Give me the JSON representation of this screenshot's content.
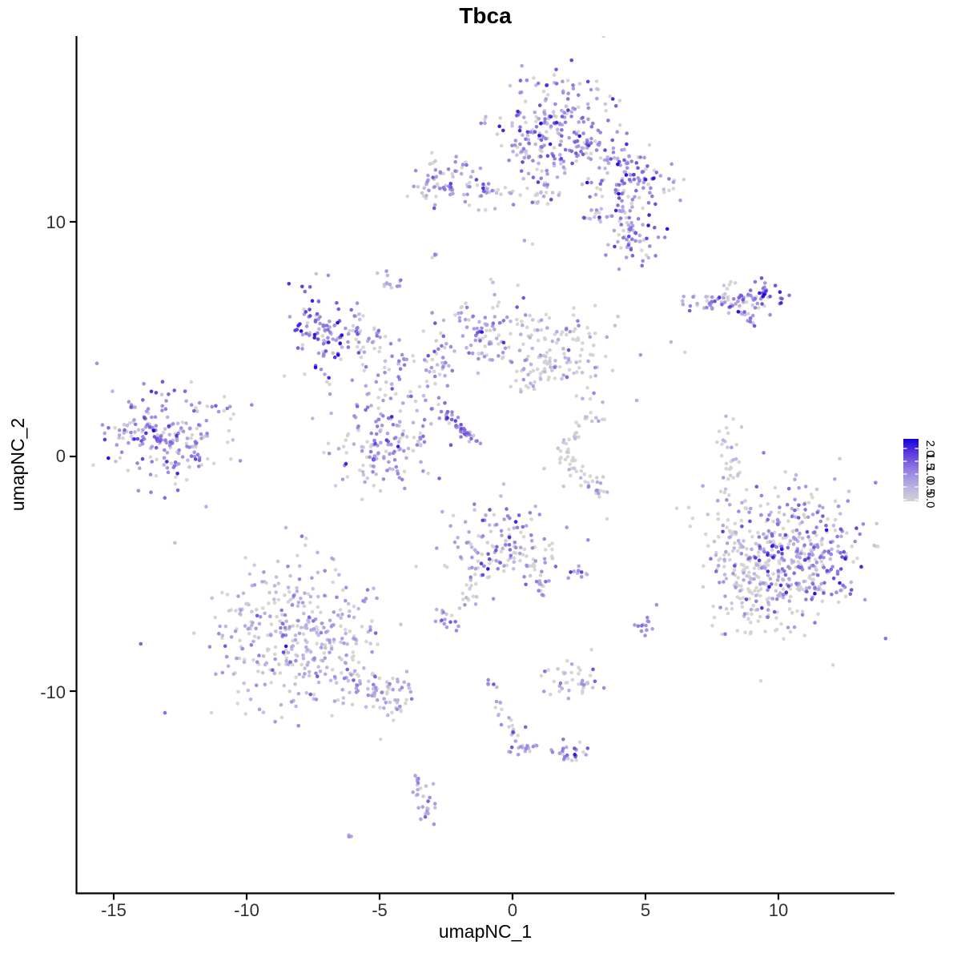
{
  "chart_data": {
    "type": "scatter",
    "title": "Tbca",
    "xlabel": "umapNC_1",
    "ylabel": "umapNC_2",
    "x_tick_labels": [
      "-15",
      "-10",
      "-5",
      "0",
      "5",
      "10"
    ],
    "x_tick_values": [
      -15,
      -10,
      -5,
      0,
      5,
      10
    ],
    "y_tick_labels": [
      "10",
      "0",
      "-10"
    ],
    "y_tick_values": [
      10,
      0,
      -10
    ],
    "xlim": [
      -16.4,
      14.4
    ],
    "ylim": [
      -18.6,
      17.9
    ],
    "grid": false,
    "legend": {
      "position": "right",
      "tick_labels": [
        "2.0",
        "1.5",
        "1.0",
        "0.5",
        "0.0"
      ],
      "tick_values": [
        2.0,
        1.5,
        1.0,
        0.5,
        0.0
      ],
      "min": 0.0,
      "max": 2.0
    },
    "colors": {
      "background": "#FFFFFF",
      "axis": "#000000",
      "title_text": "#000000",
      "tick_text": "#303030",
      "color_low": "#D3D3D3",
      "color_high": "#1500E1"
    },
    "color_stops": [
      [
        0.0,
        "#D3D3D3"
      ],
      [
        0.25,
        "#B7AEE4"
      ],
      [
        0.5,
        "#9480E2"
      ],
      [
        0.75,
        "#6240DB"
      ],
      [
        1.0,
        "#1500E1"
      ]
    ],
    "point_radius": 2.3,
    "point_opacity": 0.92,
    "seed": 42,
    "clusters": [
      {
        "name": "top-main",
        "shape": "blob",
        "cx": 1.81,
        "cy": 13.72,
        "sx": 1.27,
        "sy": 1.15,
        "rot": -20,
        "n": 270,
        "p0": 0.18,
        "emean": 0.85,
        "esd": 0.45
      },
      {
        "name": "top-right-arm",
        "shape": "blob",
        "cx": 4.61,
        "cy": 11.88,
        "sx": 0.84,
        "sy": 0.55,
        "rot": -25,
        "n": 90,
        "p0": 0.15,
        "emean": 1.0,
        "esd": 0.5
      },
      {
        "name": "top-lower-blob",
        "shape": "blob",
        "cx": 4.52,
        "cy": 9.22,
        "sx": 0.6,
        "sy": 0.61,
        "rot": 0,
        "n": 55,
        "p0": 0.12,
        "emean": 1.0,
        "esd": 0.5
      },
      {
        "name": "top-neck",
        "shape": "line",
        "x1": 4.22,
        "y1": 11.26,
        "x2": 4.52,
        "y2": 9.73,
        "jitter": 0.25,
        "n": 25,
        "p0": 0.2,
        "emean": 0.9,
        "esd": 0.4
      },
      {
        "name": "top-small-ledge",
        "shape": "blob",
        "cx": 3.16,
        "cy": 10.2,
        "sx": 0.35,
        "sy": 0.15,
        "rot": 0,
        "n": 18,
        "p0": 0.3,
        "emean": 0.7,
        "esd": 0.35
      },
      {
        "name": "top-left-neck",
        "shape": "line",
        "x1": 1.36,
        "y1": 12.12,
        "x2": 0.9,
        "y2": 10.92,
        "jitter": 0.2,
        "n": 22,
        "p0": 0.25,
        "emean": 0.8,
        "esd": 0.4
      },
      {
        "name": "upper-left-cluster",
        "shape": "blob",
        "cx": -2.26,
        "cy": 11.67,
        "sx": 0.81,
        "sy": 0.58,
        "rot": 0,
        "n": 80,
        "p0": 0.25,
        "emean": 0.8,
        "esd": 0.45
      },
      {
        "name": "upper-left-tail",
        "shape": "line",
        "x1": -1.2,
        "y1": 11.37,
        "x2": 0.24,
        "y2": 11.26,
        "jitter": 0.12,
        "n": 16,
        "p0": 0.3,
        "emean": 0.6,
        "esd": 0.35
      },
      {
        "name": "tiny-upper-dots",
        "shape": "blob",
        "cx": -2.86,
        "cy": 8.57,
        "sx": 0.12,
        "sy": 0.12,
        "rot": 0,
        "n": 4,
        "p0": 0.3,
        "emean": 0.7,
        "esd": 0.3
      },
      {
        "name": "small-upper-left",
        "shape": "blob",
        "cx": -4.7,
        "cy": 7.44,
        "sx": 0.28,
        "sy": 0.2,
        "rot": 0,
        "n": 13,
        "p0": 0.3,
        "emean": 0.55,
        "esd": 0.3
      },
      {
        "name": "left-dense-blob",
        "shape": "blob",
        "cx": -7.23,
        "cy": 5.39,
        "sx": 0.6,
        "sy": 0.89,
        "rot": 15,
        "n": 95,
        "p0": 0.08,
        "emean": 1.1,
        "esd": 0.5
      },
      {
        "name": "left-dense-ext",
        "shape": "blob",
        "cx": -5.81,
        "cy": 5.12,
        "sx": 0.54,
        "sy": 0.51,
        "rot": 0,
        "n": 40,
        "p0": 0.25,
        "emean": 0.75,
        "esd": 0.4
      },
      {
        "name": "branch-field",
        "shape": "blob",
        "cx": -4.37,
        "cy": 3.41,
        "sx": 1.2,
        "sy": 1.2,
        "rot": 0,
        "n": 75,
        "p0": 0.3,
        "emean": 0.7,
        "esd": 0.4
      },
      {
        "name": "branch-vert-chain",
        "shape": "line",
        "x1": -2.53,
        "y1": 5.63,
        "x2": -2.77,
        "y2": 3.41,
        "jitter": 0.22,
        "n": 22,
        "p0": 0.25,
        "emean": 0.7,
        "esd": 0.4
      },
      {
        "name": "branch-upper-scatter",
        "shape": "blob",
        "cx": -1.05,
        "cy": 5.97,
        "sx": 0.9,
        "sy": 0.61,
        "rot": 0,
        "n": 45,
        "p0": 0.3,
        "emean": 0.7,
        "esd": 0.4
      },
      {
        "name": "mid-blob",
        "shape": "blob",
        "cx": -0.84,
        "cy": 4.85,
        "sx": 0.42,
        "sy": 0.55,
        "rot": 0,
        "n": 40,
        "p0": 0.2,
        "emean": 0.85,
        "esd": 0.4
      },
      {
        "name": "center-right-cluster",
        "shape": "blob",
        "cx": 1.72,
        "cy": 4.23,
        "sx": 0.96,
        "sy": 0.85,
        "rot": 0,
        "n": 150,
        "p0": 0.45,
        "emean": 0.55,
        "esd": 0.4
      },
      {
        "name": "left-main-cluster",
        "shape": "blob",
        "cx": -13.1,
        "cy": 0.78,
        "sx": 1.05,
        "sy": 0.96,
        "rot": -10,
        "n": 210,
        "p0": 0.12,
        "emean": 0.9,
        "esd": 0.45
      },
      {
        "name": "left-main-spray",
        "shape": "line",
        "x1": -11.6,
        "y1": 2.22,
        "x2": -10.54,
        "y2": 1.71,
        "jitter": 0.3,
        "n": 10,
        "p0": 0.2,
        "emean": 0.8,
        "esd": 0.4
      },
      {
        "name": "central-lower-cluster",
        "shape": "blob",
        "cx": -4.76,
        "cy": 0.58,
        "sx": 1.0,
        "sy": 1.02,
        "rot": 0,
        "n": 150,
        "p0": 0.22,
        "emean": 0.8,
        "esd": 0.45
      },
      {
        "name": "comet-streak",
        "shape": "line",
        "x1": -2.65,
        "y1": 1.84,
        "x2": -1.3,
        "y2": 0.58,
        "jitter": 0.08,
        "n": 40,
        "p0": 0.05,
        "emean": 1.0,
        "esd": 0.35
      },
      {
        "name": "grey-crescent",
        "shape": "arc",
        "cx": 3.46,
        "cy": 0.17,
        "rx": 1.36,
        "ry": 1.54,
        "a1": 95,
        "a2": 265,
        "jitter": 0.18,
        "n": 60,
        "p0": 0.72,
        "emean": 0.3,
        "esd": 0.25
      },
      {
        "name": "crescent-tip",
        "shape": "blob",
        "cx": 2.86,
        "cy": -1.19,
        "sx": 0.3,
        "sy": 0.2,
        "rot": 0,
        "n": 8,
        "p0": 0.2,
        "emean": 0.8,
        "esd": 0.4
      },
      {
        "name": "right-vert-streak",
        "shape": "blob",
        "cx": 8.13,
        "cy": 0.07,
        "sx": 0.24,
        "sy": 1.02,
        "rot": 0,
        "n": 32,
        "p0": 0.6,
        "emean": 0.4,
        "esd": 0.3
      },
      {
        "name": "right-main-core",
        "shape": "blob",
        "cx": 10.7,
        "cy": -4.16,
        "sx": 1.25,
        "sy": 1.4,
        "rot": 0,
        "n": 420,
        "p0": 0.3,
        "emean": 0.9,
        "esd": 0.5
      },
      {
        "name": "right-main-fringe",
        "shape": "blob",
        "cx": 8.73,
        "cy": -4.95,
        "sx": 0.84,
        "sy": 1.37,
        "rot": 20,
        "n": 160,
        "p0": 0.6,
        "emean": 0.4,
        "esd": 0.35
      },
      {
        "name": "center-bottom-cluster",
        "shape": "blob",
        "cx": -0.54,
        "cy": -3.69,
        "sx": 1.0,
        "sy": 0.92,
        "rot": 0,
        "n": 140,
        "p0": 0.35,
        "emean": 0.75,
        "esd": 0.45
      },
      {
        "name": "cbc-tail-right",
        "shape": "line",
        "x1": 0.6,
        "y1": -4.44,
        "x2": 1.2,
        "y2": -5.8,
        "jitter": 0.15,
        "n": 18,
        "p0": 0.3,
        "emean": 0.7,
        "esd": 0.4
      },
      {
        "name": "cbc-tail-left",
        "shape": "line",
        "x1": -1.33,
        "y1": -4.85,
        "x2": -2.11,
        "y2": -6.55,
        "jitter": 0.12,
        "n": 14,
        "p0": 0.35,
        "emean": 0.6,
        "esd": 0.35
      },
      {
        "name": "small-pair-blob",
        "shape": "blob",
        "cx": 2.5,
        "cy": -5.02,
        "sx": 0.27,
        "sy": 0.2,
        "rot": 0,
        "n": 10,
        "p0": 0.1,
        "emean": 0.9,
        "esd": 0.4
      },
      {
        "name": "bottom-left-main",
        "shape": "blob",
        "cx": -8.19,
        "cy": -7.51,
        "sx": 1.57,
        "sy": 1.57,
        "rot": 0,
        "n": 380,
        "p0": 0.25,
        "emean": 0.6,
        "esd": 0.35
      },
      {
        "name": "bottom-left-tail",
        "shape": "line",
        "x1": -6.02,
        "y1": -9.39,
        "x2": -4.07,
        "y2": -10.51,
        "jitter": 0.45,
        "n": 80,
        "p0": 0.3,
        "emean": 0.6,
        "esd": 0.35
      },
      {
        "name": "small-mid-blob",
        "shape": "blob",
        "cx": -2.53,
        "cy": -6.83,
        "sx": 0.3,
        "sy": 0.25,
        "rot": 0,
        "n": 16,
        "p0": 0.15,
        "emean": 0.8,
        "esd": 0.4
      },
      {
        "name": "small-mid-dots",
        "shape": "blob",
        "cx": -1.66,
        "cy": -5.97,
        "sx": 0.15,
        "sy": 0.15,
        "rot": 0,
        "n": 5,
        "p0": 0.4,
        "emean": 0.5,
        "esd": 0.3
      },
      {
        "name": "right-small-pair",
        "shape": "blob",
        "cx": 5.0,
        "cy": -7.13,
        "sx": 0.25,
        "sy": 0.3,
        "rot": 0,
        "n": 13,
        "p0": 0.1,
        "emean": 1.0,
        "esd": 0.4
      },
      {
        "name": "bottom-mid-cluster",
        "shape": "blob",
        "cx": 2.29,
        "cy": -9.52,
        "sx": 0.66,
        "sy": 0.44,
        "rot": 0,
        "n": 45,
        "p0": 0.45,
        "emean": 0.55,
        "esd": 0.35
      },
      {
        "name": "bottom-chain",
        "shape": "line",
        "x1": -0.96,
        "y1": -9.39,
        "x2": 0.06,
        "y2": -11.88,
        "jitter": 0.15,
        "n": 22,
        "p0": 0.35,
        "emean": 0.6,
        "esd": 0.35
      },
      {
        "name": "bottom-chain-blob",
        "shape": "blob",
        "cx": 0.27,
        "cy": -12.32,
        "sx": 0.32,
        "sy": 0.27,
        "rot": 0,
        "n": 20,
        "p0": 0.15,
        "emean": 0.85,
        "esd": 0.4
      },
      {
        "name": "bottom-right-blob",
        "shape": "blob",
        "cx": 2.2,
        "cy": -12.66,
        "sx": 0.35,
        "sy": 0.28,
        "rot": 0,
        "n": 26,
        "p0": 0.12,
        "emean": 1.0,
        "esd": 0.4
      },
      {
        "name": "bottom-s-cluster",
        "shape": "line",
        "x1": -3.52,
        "y1": -13.72,
        "x2": -3.2,
        "y2": -15.29,
        "jitter": 0.2,
        "n": 28,
        "p0": 0.15,
        "emean": 0.6,
        "esd": 0.3
      },
      {
        "name": "bottom-tiny-pair",
        "shape": "blob",
        "cx": -6.08,
        "cy": -16.14,
        "sx": 0.1,
        "sy": 0.07,
        "rot": 0,
        "n": 3,
        "p0": 0,
        "emean": 0.6,
        "esd": 0.15
      },
      {
        "name": "right-band",
        "shape": "line",
        "x1": 6.57,
        "y1": 6.55,
        "x2": 8.89,
        "y2": 6.76,
        "jitter": 0.2,
        "n": 55,
        "p0": 0.2,
        "emean": 0.85,
        "esd": 0.45
      },
      {
        "name": "right-band-head",
        "shape": "blob",
        "cx": 9.4,
        "cy": 6.79,
        "sx": 0.36,
        "sy": 0.34,
        "rot": 0,
        "n": 40,
        "p0": 0.1,
        "emean": 1.2,
        "esd": 0.45
      },
      {
        "name": "right-band-tail",
        "shape": "line",
        "x1": 8.67,
        "y1": 6.14,
        "x2": 9.13,
        "y2": 5.53,
        "jitter": 0.1,
        "n": 12,
        "p0": 0.25,
        "emean": 0.8,
        "esd": 0.35
      },
      {
        "name": "right-band-grey-top",
        "shape": "blob",
        "cx": 8.0,
        "cy": 7.3,
        "sx": 0.3,
        "sy": 0.15,
        "rot": 0,
        "n": 5,
        "p0": 0.8,
        "emean": 0.3,
        "esd": 0.2
      }
    ],
    "extra_points": [
      [
        -13.5,
        1.1,
        2.0
      ],
      [
        -7.44,
        5.19,
        1.95
      ],
      [
        -8.52,
        -8.09,
        1.95
      ],
      [
        9.46,
        6.9,
        1.95
      ],
      [
        10.09,
        -5.49,
        1.8
      ],
      [
        1.42,
        13.31,
        1.9
      ],
      [
        3.89,
        10.48,
        1.85
      ],
      [
        0.45,
        9.2,
        0.7
      ],
      [
        0.75,
        9.05,
        0.0
      ],
      [
        5.96,
        4.88,
        0.5
      ],
      [
        6.48,
        4.44,
        0.0
      ],
      [
        4.67,
        2.39,
        0.6
      ],
      [
        3.55,
        -2.66,
        0.0
      ]
    ]
  }
}
